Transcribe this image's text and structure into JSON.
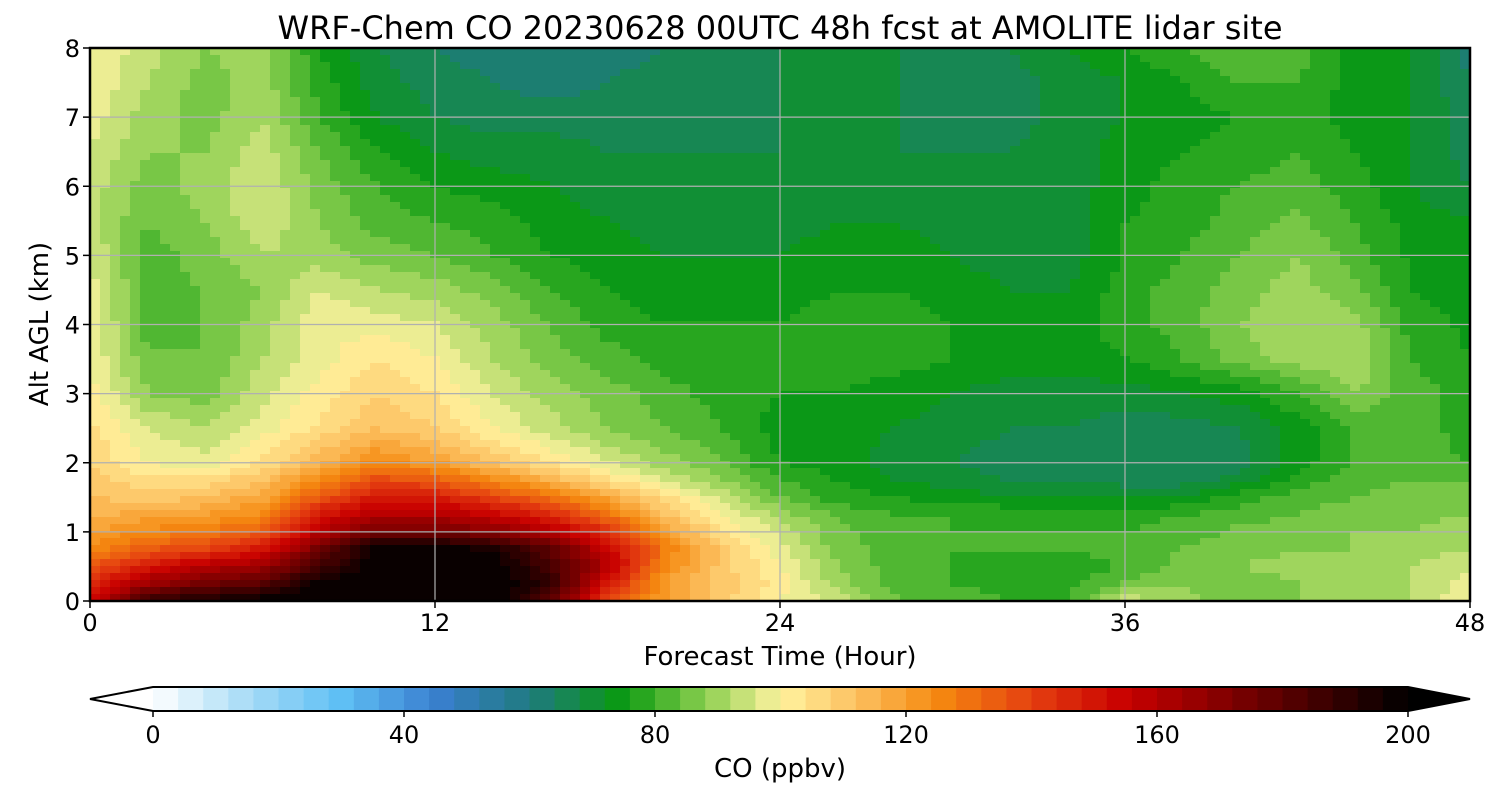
{
  "chart_data": {
    "type": "heatmap",
    "title": "WRF-Chem CO  20230628 00UTC 48h fcst at AMOLITE lidar site",
    "xlabel": "Forecast Time (Hour)",
    "ylabel": "Alt AGL (km)",
    "xlim": [
      0,
      48
    ],
    "ylim": [
      0,
      8
    ],
    "xticks": [
      "0",
      "12",
      "24",
      "36",
      "48"
    ],
    "yticks": [
      "0",
      "1",
      "2",
      "3",
      "4",
      "5",
      "6",
      "7",
      "8"
    ],
    "grid": true,
    "colorbar": {
      "label": "CO  (ppbv)",
      "min": 0,
      "max": 200,
      "ticks": [
        "0",
        "40",
        "80",
        "120",
        "160",
        "200"
      ],
      "extend": "both",
      "colors": [
        [
          0,
          "#ffffff"
        ],
        [
          15,
          "#a8dcf6"
        ],
        [
          30,
          "#5fbff4"
        ],
        [
          45,
          "#3a7fd0"
        ],
        [
          60,
          "#1f7a80"
        ],
        [
          75,
          "#0a9a10"
        ],
        [
          88,
          "#8ccf50"
        ],
        [
          100,
          "#fff3a0"
        ],
        [
          112,
          "#fcc060"
        ],
        [
          125,
          "#f58a10"
        ],
        [
          140,
          "#e54010"
        ],
        [
          155,
          "#c80000"
        ],
        [
          175,
          "#700000"
        ],
        [
          200,
          "#000000"
        ]
      ]
    },
    "x": [
      0,
      2,
      4,
      6,
      8,
      10,
      12,
      14,
      16,
      18,
      20,
      22,
      24,
      26,
      28,
      30,
      32,
      34,
      36,
      38,
      40,
      42,
      44,
      46,
      48
    ],
    "y": [
      0,
      0.25,
      0.5,
      0.75,
      1,
      1.25,
      1.5,
      1.75,
      2,
      2.5,
      3,
      3.5,
      4,
      4.5,
      5,
      5.5,
      6,
      6.5,
      7,
      7.5,
      8
    ],
    "z": [
      [
        150,
        190,
        195,
        200,
        200,
        200,
        200,
        200,
        180,
        140,
        120,
        110,
        100,
        95,
        85,
        82,
        80,
        80,
        95,
        90,
        85,
        88,
        90,
        92,
        100
      ],
      [
        145,
        165,
        175,
        180,
        200,
        200,
        200,
        200,
        190,
        150,
        120,
        110,
        102,
        90,
        82,
        80,
        78,
        78,
        85,
        88,
        85,
        88,
        90,
        92,
        98
      ],
      [
        135,
        150,
        160,
        165,
        185,
        200,
        200,
        200,
        185,
        160,
        125,
        110,
        100,
        88,
        82,
        80,
        78,
        78,
        80,
        86,
        88,
        90,
        90,
        92,
        95
      ],
      [
        125,
        135,
        140,
        150,
        175,
        200,
        200,
        195,
        180,
        155,
        128,
        110,
        98,
        86,
        82,
        80,
        80,
        80,
        82,
        84,
        86,
        88,
        88,
        90,
        92
      ],
      [
        120,
        125,
        128,
        135,
        160,
        175,
        175,
        170,
        160,
        145,
        120,
        105,
        95,
        85,
        82,
        80,
        80,
        80,
        80,
        82,
        85,
        86,
        88,
        88,
        90
      ],
      [
        115,
        118,
        120,
        125,
        150,
        160,
        160,
        155,
        145,
        130,
        112,
        100,
        90,
        83,
        80,
        80,
        79,
        79,
        78,
        80,
        82,
        84,
        86,
        87,
        88
      ],
      [
        112,
        110,
        112,
        118,
        135,
        150,
        148,
        140,
        130,
        118,
        105,
        95,
        84,
        78,
        76,
        74,
        72,
        72,
        72,
        72,
        78,
        82,
        84,
        86,
        86
      ],
      [
        110,
        105,
        105,
        112,
        125,
        138,
        135,
        125,
        115,
        105,
        96,
        88,
        80,
        76,
        72,
        70,
        68,
        68,
        66,
        66,
        70,
        78,
        82,
        84,
        84
      ],
      [
        108,
        100,
        98,
        105,
        115,
        125,
        120,
        112,
        104,
        96,
        90,
        84,
        76,
        74,
        70,
        68,
        66,
        66,
        64,
        64,
        66,
        74,
        80,
        82,
        80
      ],
      [
        105,
        96,
        92,
        98,
        105,
        112,
        108,
        100,
        94,
        88,
        84,
        80,
        74,
        74,
        72,
        70,
        68,
        68,
        66,
        66,
        68,
        74,
        80,
        82,
        78
      ],
      [
        102,
        88,
        86,
        95,
        102,
        108,
        104,
        96,
        90,
        86,
        82,
        78,
        76,
        76,
        74,
        72,
        70,
        70,
        70,
        72,
        74,
        80,
        88,
        82,
        78
      ],
      [
        100,
        85,
        84,
        92,
        98,
        104,
        100,
        92,
        86,
        82,
        78,
        76,
        76,
        78,
        78,
        76,
        74,
        74,
        76,
        80,
        86,
        90,
        92,
        80,
        76
      ],
      [
        100,
        82,
        84,
        90,
        100,
        98,
        96,
        90,
        84,
        78,
        76,
        76,
        76,
        78,
        78,
        76,
        74,
        74,
        78,
        82,
        88,
        92,
        90,
        78,
        75
      ],
      [
        98,
        82,
        84,
        88,
        96,
        92,
        90,
        86,
        80,
        76,
        74,
        74,
        74,
        76,
        76,
        74,
        72,
        72,
        78,
        82,
        86,
        90,
        85,
        76,
        74
      ],
      [
        96,
        82,
        86,
        92,
        90,
        86,
        84,
        80,
        76,
        74,
        72,
        72,
        72,
        74,
        74,
        72,
        70,
        70,
        76,
        80,
        84,
        88,
        82,
        75,
        72
      ],
      [
        94,
        84,
        88,
        95,
        88,
        82,
        80,
        78,
        74,
        72,
        70,
        70,
        70,
        72,
        72,
        70,
        70,
        70,
        76,
        78,
        82,
        85,
        80,
        74,
        72
      ],
      [
        94,
        86,
        90,
        96,
        86,
        80,
        76,
        74,
        72,
        70,
        70,
        70,
        70,
        70,
        70,
        70,
        70,
        70,
        74,
        78,
        80,
        82,
        78,
        72,
        68
      ],
      [
        96,
        88,
        88,
        94,
        84,
        76,
        72,
        70,
        70,
        68,
        68,
        68,
        68,
        68,
        68,
        68,
        68,
        70,
        74,
        76,
        78,
        80,
        76,
        72,
        66
      ],
      [
        98,
        90,
        86,
        92,
        80,
        72,
        68,
        66,
        66,
        66,
        66,
        66,
        68,
        68,
        68,
        66,
        66,
        70,
        72,
        74,
        76,
        78,
        74,
        72,
        66
      ],
      [
        100,
        92,
        86,
        90,
        78,
        70,
        66,
        64,
        62,
        64,
        66,
        66,
        68,
        68,
        68,
        66,
        66,
        70,
        72,
        76,
        80,
        80,
        74,
        72,
        64
      ],
      [
        100,
        94,
        88,
        90,
        76,
        68,
        64,
        62,
        60,
        62,
        64,
        66,
        68,
        68,
        68,
        68,
        68,
        72,
        76,
        80,
        84,
        82,
        74,
        72,
        62
      ]
    ]
  }
}
